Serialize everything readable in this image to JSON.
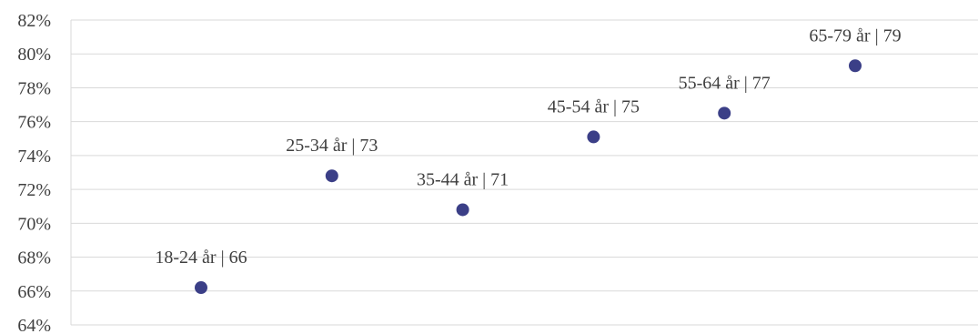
{
  "chart_data": {
    "type": "scatter",
    "title": "",
    "xlabel": "",
    "ylabel": "",
    "ylim": [
      64,
      82
    ],
    "y_ticks": [
      64,
      66,
      68,
      70,
      72,
      74,
      76,
      78,
      80,
      82
    ],
    "y_tick_suffix": "%",
    "grid": true,
    "legend": "none",
    "points": [
      {
        "label": "18-24 år | 66",
        "x": 1,
        "y": 66.2
      },
      {
        "label": "25-34 år | 73",
        "x": 2,
        "y": 72.8
      },
      {
        "label": "35-44 år | 71",
        "x": 3,
        "y": 70.8
      },
      {
        "label": "45-54 år | 75",
        "x": 4,
        "y": 75.1
      },
      {
        "label": "55-64 år | 77",
        "x": 5,
        "y": 76.5
      },
      {
        "label": "65-79 år | 79",
        "x": 6,
        "y": 79.3
      }
    ],
    "colors": {
      "marker": "#3b3f87",
      "grid": "#d9d9d9",
      "text": "#404040"
    }
  }
}
